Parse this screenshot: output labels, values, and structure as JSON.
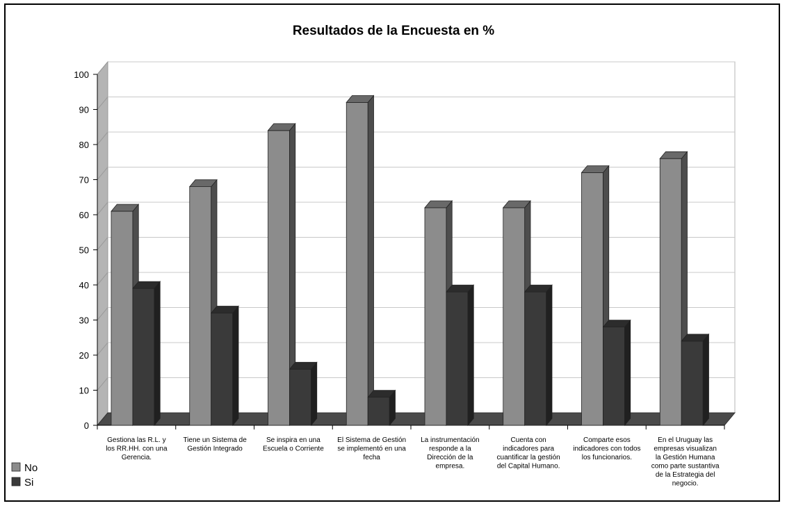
{
  "chart_data": {
    "type": "bar",
    "title": "Resultados de la Encuesta en %",
    "xlabel": "",
    "ylabel": "",
    "ylim": [
      0,
      100
    ],
    "yticks": [
      "0",
      "10",
      "20",
      "30",
      "40",
      "50",
      "60",
      "70",
      "80",
      "90",
      "100"
    ],
    "grid": true,
    "legend_position": "bottom-left",
    "categories": [
      [
        "Gestiona las R.L. y",
        "los RR.HH. con una",
        "Gerencia."
      ],
      [
        "Tiene un Sistema de",
        "Gestión Integrado"
      ],
      [
        "Se inspira en una",
        "Escuela o Corriente"
      ],
      [
        "El Sistema de Gestión",
        "se implementó en una",
        "fecha"
      ],
      [
        "La instrumentación",
        "responde a la",
        "Dirección de la",
        "empresa."
      ],
      [
        "Cuenta con",
        "indicadores para",
        "cuantificar la gestión",
        "del Capital Humano."
      ],
      [
        "Comparte esos",
        "indicadores con todos",
        "los funcionarios."
      ],
      [
        "En el Uruguay las",
        "empresas visualizan",
        "la Gestión Humana",
        "como parte sustantiva",
        "de la Estrategia del",
        "negocio."
      ]
    ],
    "series": [
      {
        "name": "No",
        "color": "#8c8c8c",
        "values": [
          61,
          68,
          84,
          92,
          62,
          62,
          72,
          76
        ]
      },
      {
        "name": "Si",
        "color": "#3a3a3a",
        "values": [
          39,
          32,
          16,
          8,
          38,
          38,
          28,
          24
        ]
      }
    ]
  }
}
